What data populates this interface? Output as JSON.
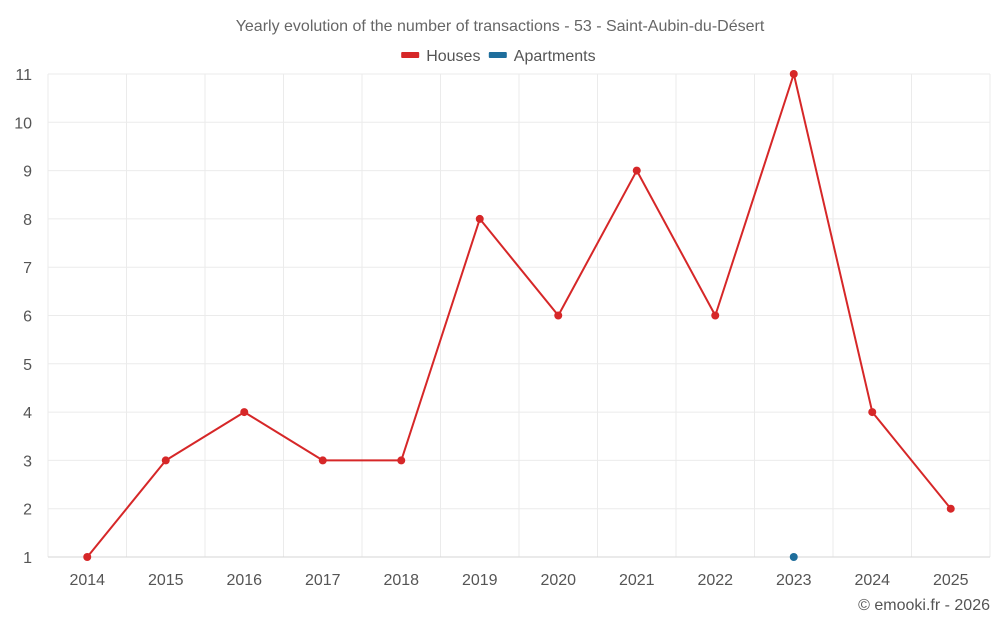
{
  "chart_data": {
    "type": "line",
    "title": "Yearly evolution of the number of transactions - 53 - Saint-Aubin-du-Désert",
    "xlabel": "",
    "ylabel": "",
    "categories": [
      "2014",
      "2015",
      "2016",
      "2017",
      "2018",
      "2019",
      "2020",
      "2021",
      "2022",
      "2023",
      "2024",
      "2025"
    ],
    "ylim": [
      1,
      11
    ],
    "yticks": [
      1,
      2,
      3,
      4,
      5,
      6,
      7,
      8,
      9,
      10,
      11
    ],
    "grid": true,
    "legend_position": "top-center",
    "series": [
      {
        "name": "Houses",
        "color": "#d62728",
        "values": [
          1,
          3,
          4,
          3,
          3,
          8,
          6,
          9,
          6,
          11,
          4,
          2
        ]
      },
      {
        "name": "Apartments",
        "color": "#1f6e9c",
        "values": [
          null,
          null,
          null,
          null,
          null,
          null,
          null,
          null,
          null,
          1,
          null,
          null
        ]
      }
    ],
    "credit": "© emooki.fr - 2026"
  }
}
